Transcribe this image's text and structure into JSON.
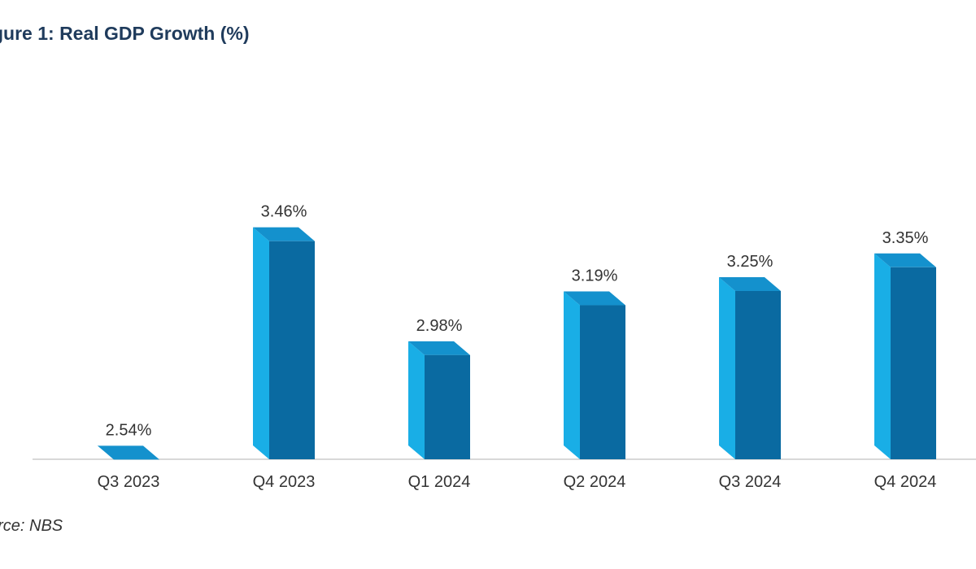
{
  "title": "gure 1: Real GDP Growth (%)",
  "source": "urce: NBS",
  "colors": {
    "bar_front": "#0a6aa1",
    "bar_side": "#19aee6",
    "bar_top": "#1491cd",
    "axis": "#cccccc"
  },
  "chart_data": {
    "type": "bar",
    "title": "gure 1: Real GDP Growth (%)",
    "categories": [
      "Q3 2023",
      "Q4 2023",
      "Q1 2024",
      "Q2 2024",
      "Q3 2024",
      "Q4 2024"
    ],
    "values": [
      2.54,
      3.46,
      2.98,
      3.19,
      3.25,
      3.35
    ],
    "value_labels": [
      "2.54%",
      "3.46%",
      "2.98%",
      "3.19%",
      "3.25%",
      "3.35%"
    ],
    "xlabel": "",
    "ylabel": "",
    "grid": false,
    "legend": "none"
  }
}
